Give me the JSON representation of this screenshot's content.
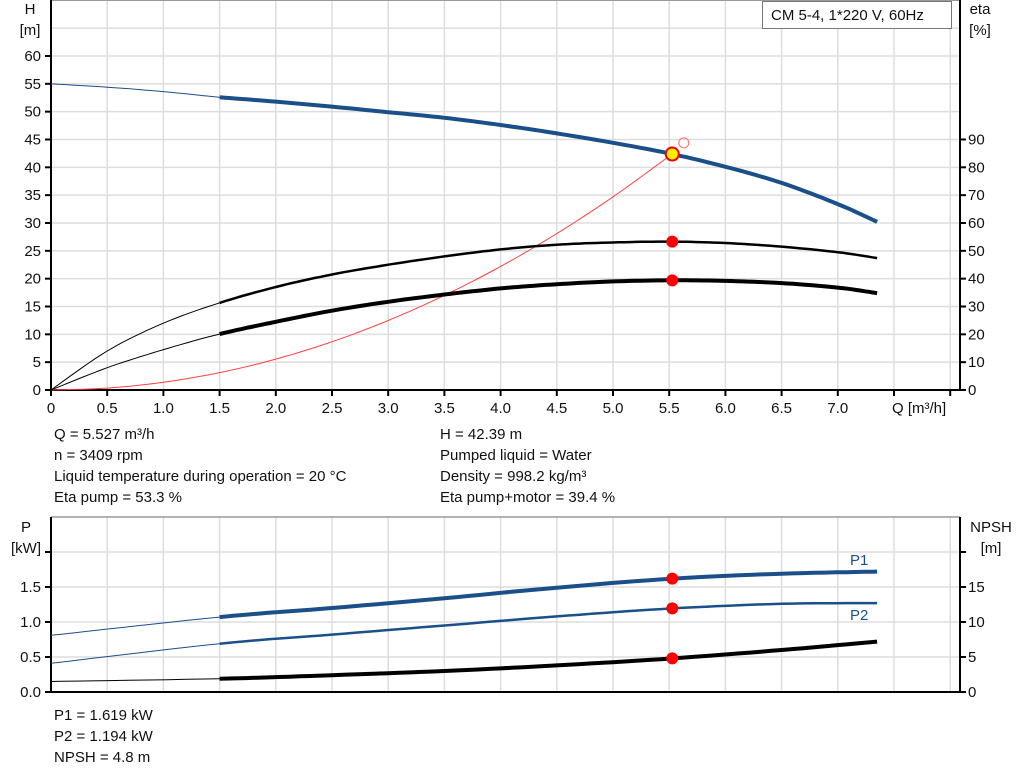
{
  "chart_data": [
    {
      "type": "line",
      "title": "CM 5-4, 1*220 V, 60Hz",
      "xlabel": "Q [m³/h]",
      "ylabel_left": [
        "H",
        "[m]"
      ],
      "ylabel_right": [
        "eta",
        "[%]"
      ],
      "xlim": [
        0,
        8.0
      ],
      "ylim_left": [
        0,
        70
      ],
      "ylim_right": [
        0,
        140
      ],
      "x_ticks": [
        "0",
        "0.5",
        "1.0",
        "1.5",
        "2.0",
        "2.5",
        "3.0",
        "3.5",
        "4.0",
        "4.5",
        "5.0",
        "5.5",
        "6.0",
        "6.5",
        "7.0"
      ],
      "y_ticks_left": [
        "0",
        "5",
        "10",
        "15",
        "20",
        "25",
        "30",
        "35",
        "40",
        "45",
        "50",
        "55",
        "60"
      ],
      "y_ticks_right": [
        "0",
        "10",
        "20",
        "30",
        "40",
        "50",
        "60",
        "70",
        "80",
        "90"
      ],
      "grid": true,
      "thin_until_q": 1.5,
      "series": [
        {
          "key": "H",
          "axis": "left",
          "color": "#1a4f8a",
          "points": [
            [
              0,
              55
            ],
            [
              0.5,
              54.4
            ],
            [
              1,
              53.6
            ],
            [
              1.5,
              52.6
            ],
            [
              2,
              51.8
            ],
            [
              2.5,
              50.9
            ],
            [
              3,
              49.9
            ],
            [
              3.5,
              48.9
            ],
            [
              4,
              47.6
            ],
            [
              4.5,
              46.1
            ],
            [
              5,
              44.4
            ],
            [
              5.5,
              42.5
            ],
            [
              6,
              40.1
            ],
            [
              6.5,
              37.2
            ],
            [
              7,
              33.4
            ],
            [
              7.35,
              30.2
            ]
          ]
        },
        {
          "key": "eta_pump",
          "axis": "right",
          "color": "#000000",
          "points": [
            [
              0,
              0
            ],
            [
              0.5,
              14
            ],
            [
              1,
              24
            ],
            [
              1.5,
              31.3
            ],
            [
              2,
              37
            ],
            [
              2.5,
              41.5
            ],
            [
              3,
              45
            ],
            [
              3.5,
              48
            ],
            [
              4,
              50.5
            ],
            [
              4.5,
              52.2
            ],
            [
              5,
              53
            ],
            [
              5.5,
              53.3
            ],
            [
              6,
              52.8
            ],
            [
              6.5,
              51.5
            ],
            [
              7,
              49.5
            ],
            [
              7.35,
              47.4
            ]
          ]
        },
        {
          "key": "eta_pump_motor",
          "axis": "right",
          "color": "#000000",
          "points": [
            [
              0,
              0
            ],
            [
              0.5,
              8
            ],
            [
              1,
              14.5
            ],
            [
              1.5,
              20.1
            ],
            [
              2,
              24.5
            ],
            [
              2.5,
              28.5
            ],
            [
              3,
              31.7
            ],
            [
              3.5,
              34.3
            ],
            [
              4,
              36.5
            ],
            [
              4.5,
              38
            ],
            [
              5,
              39
            ],
            [
              5.5,
              39.4
            ],
            [
              6,
              39.2
            ],
            [
              6.5,
              38.4
            ],
            [
              7,
              36.8
            ],
            [
              7.35,
              34.8
            ]
          ]
        },
        {
          "key": "system_curve",
          "axis": "left",
          "color": "#ff4040",
          "points": [
            [
              0,
              0
            ],
            [
              0.5,
              0.35
            ],
            [
              1,
              1.39
            ],
            [
              1.5,
              3.12
            ],
            [
              2,
              5.55
            ],
            [
              2.5,
              8.67
            ],
            [
              3,
              12.49
            ],
            [
              3.5,
              17
            ],
            [
              4,
              22.2
            ],
            [
              4.5,
              28.1
            ],
            [
              5,
              34.7
            ],
            [
              5.527,
              42.39
            ]
          ]
        }
      ],
      "duty_point": {
        "q": 5.527,
        "h": 42.39,
        "eta_pump": 53.3,
        "eta_pump_motor": 39.4
      },
      "requested_point": {
        "q": 5.63,
        "h": 44.4
      }
    },
    {
      "type": "line",
      "ylabel_left": [
        "P",
        "[kW]"
      ],
      "ylabel_right": [
        "NPSH",
        "[m]"
      ],
      "xlim": [
        0,
        8.0
      ],
      "ylim_left": [
        0,
        2.5
      ],
      "ylim_right": [
        0,
        25
      ],
      "y_ticks_left": [
        "0.0",
        "0.5",
        "1.0",
        "1.5"
      ],
      "y_ticks_right": [
        "0",
        "5",
        "10",
        "15"
      ],
      "grid": true,
      "series": [
        {
          "key": "P1",
          "name": "P1",
          "axis": "left",
          "color": "#1a4f8a",
          "points": [
            [
              0,
              0.81
            ],
            [
              1.5,
              1.07
            ],
            [
              2.5,
              1.2
            ],
            [
              3.5,
              1.34
            ],
            [
              4.5,
              1.49
            ],
            [
              5.527,
              1.619
            ],
            [
              6.5,
              1.69
            ],
            [
              7.35,
              1.72
            ]
          ]
        },
        {
          "key": "P2",
          "name": "P2",
          "axis": "left",
          "color": "#1a4f8a",
          "points": [
            [
              0,
              0.41
            ],
            [
              1.5,
              0.69
            ],
            [
              2.5,
              0.82
            ],
            [
              3.5,
              0.95
            ],
            [
              4.5,
              1.08
            ],
            [
              5.527,
              1.194
            ],
            [
              6.5,
              1.26
            ],
            [
              7.35,
              1.27
            ]
          ]
        },
        {
          "key": "NPSH",
          "axis": "right",
          "color": "#000000",
          "points": [
            [
              0,
              1.5
            ],
            [
              1.5,
              1.9
            ],
            [
              2.5,
              2.4
            ],
            [
              3.5,
              3.0
            ],
            [
              4.5,
              3.8
            ],
            [
              5.527,
              4.8
            ],
            [
              6.5,
              6.0
            ],
            [
              7.35,
              7.2
            ]
          ]
        }
      ],
      "duty_point": {
        "q": 5.527,
        "p1": 1.619,
        "p2": 1.194,
        "npsh": 4.8
      }
    }
  ],
  "info_top": {
    "left": [
      "Q = 5.527 m³/h",
      "n = 3409 rpm",
      "Liquid temperature during operation = 20 °C",
      "Eta pump = 53.3 %"
    ],
    "right": [
      "H = 42.39 m",
      "Pumped liquid = Water",
      "Density = 998.2 kg/m³",
      "Eta pump+motor = 39.4 %"
    ]
  },
  "info_bottom": [
    "P1 = 1.619 kW",
    "P2 = 1.194 kW",
    "NPSH = 4.8 m"
  ]
}
